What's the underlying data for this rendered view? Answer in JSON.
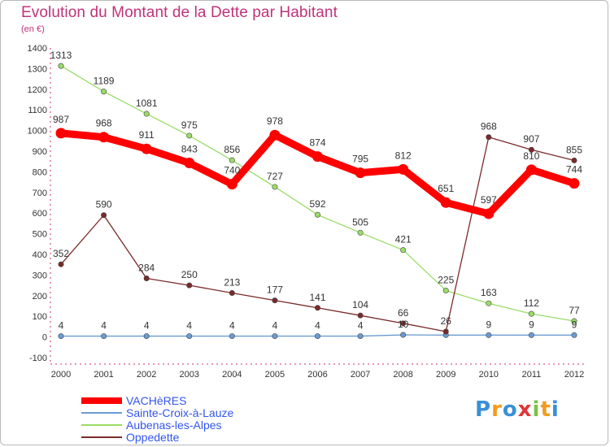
{
  "title": "Evolution du Montant de la Dette par Habitant",
  "subtitle": "(en €)",
  "logo_text": "Proxiti",
  "chart_data": {
    "type": "line",
    "title": "Evolution du Montant de la Dette par Habitant",
    "ylabel": "(en €)",
    "x": [
      "2000",
      "2001",
      "2002",
      "2003",
      "2004",
      "2005",
      "2006",
      "2007",
      "2008",
      "2009",
      "2010",
      "2011",
      "2012"
    ],
    "yticks": [
      -100,
      0,
      100,
      200,
      300,
      400,
      500,
      600,
      700,
      800,
      900,
      1000,
      1100,
      1200,
      1300,
      1400
    ],
    "ylim": [
      -100,
      1400
    ],
    "grid": false,
    "legend_position": "bottom-left",
    "series": [
      {
        "name": "VACHèRES",
        "color": "#ff0000",
        "values": [
          987,
          968,
          911,
          843,
          740,
          978,
          874,
          795,
          812,
          651,
          597,
          810,
          744
        ],
        "labels": [
          "987",
          "968",
          "911",
          "843",
          "740",
          "978",
          "874",
          "795",
          "812",
          "651",
          "597",
          "810",
          "744"
        ]
      },
      {
        "name": "Sainte-Croix-à-Lauze",
        "color": "#6a9bd1",
        "values": [
          4,
          4,
          4,
          4,
          4,
          4,
          4,
          4,
          10,
          9,
          9,
          9,
          9
        ],
        "labels": [
          "4",
          "4",
          "4",
          "4",
          "4",
          "4",
          "4",
          "4",
          "10",
          "",
          "9",
          "9",
          "9"
        ]
      },
      {
        "name": "Aubenas-les-Alpes",
        "color": "#99dd66",
        "values": [
          1313,
          1189,
          1081,
          975,
          856,
          727,
          592,
          505,
          421,
          225,
          163,
          112,
          77
        ],
        "labels": [
          "1313",
          "1189",
          "1081",
          "975",
          "856",
          "727",
          "592",
          "505",
          "421",
          "225",
          "163",
          "112",
          "77"
        ]
      },
      {
        "name": "Oppedette",
        "color": "#7a2a2a",
        "values": [
          352,
          590,
          284,
          250,
          213,
          177,
          141,
          104,
          66,
          26,
          968,
          907,
          855
        ],
        "labels": [
          "352",
          "590",
          "284",
          "250",
          "213",
          "177",
          "141",
          "104",
          "66",
          "26",
          "968",
          "907",
          "855"
        ]
      }
    ]
  }
}
